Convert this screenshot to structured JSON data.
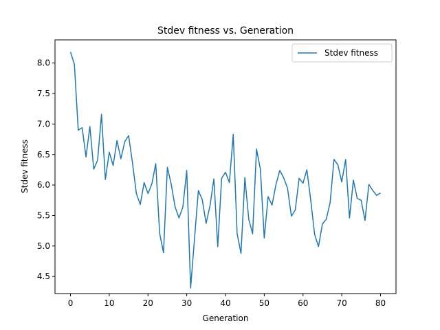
{
  "chart_data": {
    "type": "line",
    "title": "Stdev fitness vs. Generation",
    "xlabel": "Generation",
    "ylabel": "Stdev fitness",
    "xlim": [
      -4,
      84
    ],
    "ylim": [
      4.22,
      8.38
    ],
    "xticks": [
      0,
      10,
      20,
      30,
      40,
      50,
      60,
      70,
      80
    ],
    "yticks": [
      4.5,
      5.0,
      5.5,
      6.0,
      6.5,
      7.0,
      7.5,
      8.0
    ],
    "grid": false,
    "legend": "top-right",
    "series": [
      {
        "name": "Stdev fitness",
        "color": "#1f77b4",
        "x": [
          0,
          1,
          2,
          3,
          4,
          5,
          6,
          7,
          8,
          9,
          10,
          11,
          12,
          13,
          14,
          15,
          16,
          17,
          18,
          19,
          20,
          21,
          22,
          23,
          24,
          25,
          26,
          27,
          28,
          29,
          30,
          31,
          32,
          33,
          34,
          35,
          36,
          37,
          38,
          39,
          40,
          41,
          42,
          43,
          44,
          45,
          46,
          47,
          48,
          49,
          50,
          51,
          52,
          53,
          54,
          55,
          56,
          57,
          58,
          59,
          60,
          61,
          62,
          63,
          64,
          65,
          66,
          67,
          68,
          69,
          70,
          71,
          72,
          73,
          74,
          75,
          76,
          77,
          78,
          79,
          80
        ],
        "values": [
          8.18,
          7.98,
          6.9,
          6.94,
          6.46,
          6.96,
          6.26,
          6.41,
          7.16,
          6.09,
          6.54,
          6.32,
          6.73,
          6.43,
          6.71,
          6.81,
          6.36,
          5.86,
          5.68,
          6.04,
          5.86,
          6.02,
          6.35,
          5.21,
          4.89,
          6.29,
          6.01,
          5.64,
          5.46,
          5.64,
          6.24,
          4.31,
          5.12,
          5.91,
          5.76,
          5.37,
          5.66,
          6.1,
          4.99,
          6.11,
          6.21,
          6.04,
          6.83,
          5.2,
          4.88,
          6.12,
          5.44,
          5.2,
          6.59,
          6.26,
          5.13,
          5.81,
          5.67,
          6.0,
          6.24,
          6.12,
          5.95,
          5.49,
          5.59,
          6.11,
          6.03,
          6.25,
          5.75,
          5.19,
          4.99,
          5.36,
          5.44,
          5.71,
          6.42,
          6.33,
          6.05,
          6.42,
          5.46,
          6.08,
          5.78,
          5.75,
          5.42,
          6.01,
          5.91,
          5.83,
          5.87
        ]
      }
    ]
  }
}
